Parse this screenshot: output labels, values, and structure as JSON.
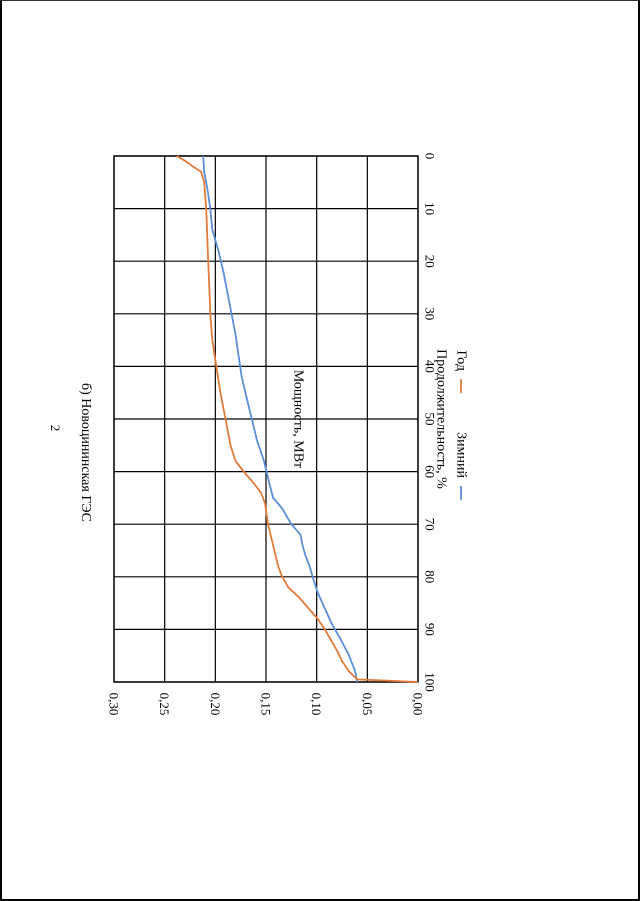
{
  "page": {
    "number": "2"
  },
  "chart_data": {
    "type": "line",
    "title": "б) Новоцининская ГЭС",
    "xlabel": "Продолжительность, %",
    "ylabel": "Мощность, МВт",
    "xlim": [
      0,
      100
    ],
    "ylim": [
      0,
      0.3
    ],
    "x_ticks": [
      "0",
      "10",
      "20",
      "30",
      "40",
      "50",
      "60",
      "70",
      "80",
      "90",
      "100"
    ],
    "y_ticks": [
      "0,00",
      "0,05",
      "0,10",
      "0,15",
      "0,20",
      "0,25",
      "0,30"
    ],
    "grid": true,
    "legend_position": "bottom",
    "series": [
      {
        "name": "Зимний",
        "color": "#5b8fd6",
        "points": [
          [
            0,
            0.212
          ],
          [
            3,
            0.211
          ],
          [
            6,
            0.208
          ],
          [
            10,
            0.205
          ],
          [
            14,
            0.203
          ],
          [
            18,
            0.197
          ],
          [
            22,
            0.192
          ],
          [
            26,
            0.188
          ],
          [
            30,
            0.184
          ],
          [
            34,
            0.18
          ],
          [
            38,
            0.177
          ],
          [
            42,
            0.174
          ],
          [
            46,
            0.169
          ],
          [
            50,
            0.164
          ],
          [
            54,
            0.159
          ],
          [
            58,
            0.152
          ],
          [
            62,
            0.147
          ],
          [
            65,
            0.143
          ],
          [
            67,
            0.134
          ],
          [
            70,
            0.125
          ],
          [
            72,
            0.116
          ],
          [
            74,
            0.114
          ],
          [
            76,
            0.111
          ],
          [
            78,
            0.107
          ],
          [
            80,
            0.104
          ],
          [
            83,
            0.099
          ],
          [
            86,
            0.092
          ],
          [
            89,
            0.085
          ],
          [
            92,
            0.076
          ],
          [
            95,
            0.068
          ],
          [
            98,
            0.062
          ],
          [
            100,
            0.06
          ]
        ]
      },
      {
        "name": "Год",
        "color": "#e07b39",
        "points": [
          [
            0,
            0.238
          ],
          [
            1,
            0.229
          ],
          [
            2,
            0.222
          ],
          [
            3,
            0.214
          ],
          [
            5,
            0.211
          ],
          [
            10,
            0.209
          ],
          [
            15,
            0.208
          ],
          [
            20,
            0.207
          ],
          [
            25,
            0.206
          ],
          [
            30,
            0.205
          ],
          [
            35,
            0.203
          ],
          [
            40,
            0.199
          ],
          [
            45,
            0.195
          ],
          [
            50,
            0.19
          ],
          [
            55,
            0.185
          ],
          [
            58,
            0.18
          ],
          [
            60,
            0.172
          ],
          [
            62,
            0.163
          ],
          [
            64,
            0.155
          ],
          [
            66,
            0.151
          ],
          [
            70,
            0.148
          ],
          [
            74,
            0.143
          ],
          [
            78,
            0.138
          ],
          [
            80,
            0.134
          ],
          [
            82,
            0.128
          ],
          [
            84,
            0.117
          ],
          [
            86,
            0.108
          ],
          [
            88,
            0.099
          ],
          [
            90,
            0.092
          ],
          [
            92,
            0.086
          ],
          [
            94,
            0.08
          ],
          [
            96,
            0.075
          ],
          [
            98,
            0.068
          ],
          [
            99.5,
            0.06
          ],
          [
            100,
            0.0
          ]
        ]
      }
    ]
  }
}
